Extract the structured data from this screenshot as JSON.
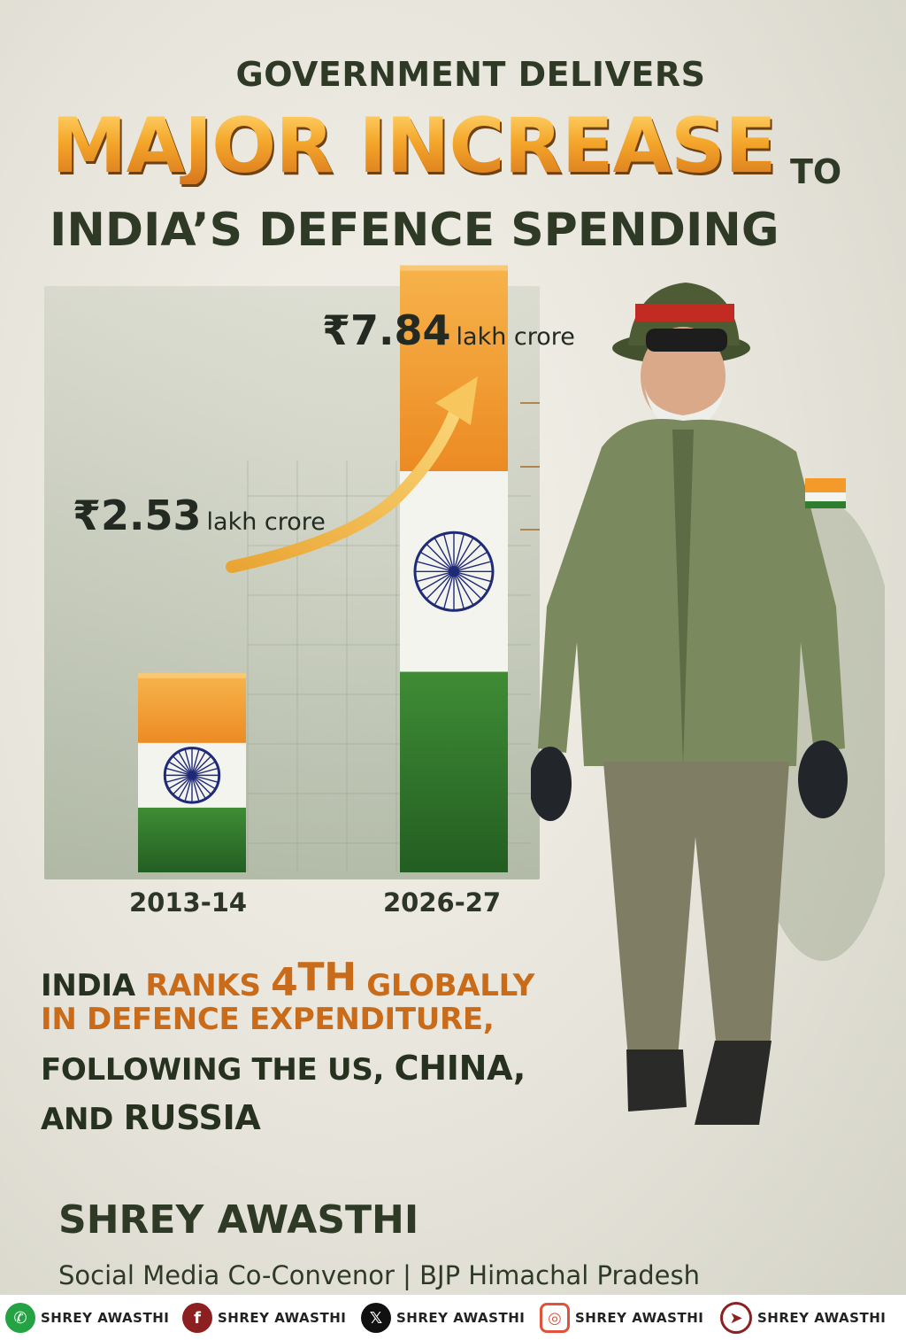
{
  "heading": {
    "line1": "GOVERNMENT DELIVERS",
    "line2": "MAJOR INCREASE",
    "line2_suffix": "TO",
    "line3": "INDIA’S DEFENCE SPENDING"
  },
  "chart_data": {
    "type": "bar",
    "categories": [
      "2013-14",
      "2026-27"
    ],
    "values": [
      2.53,
      7.84
    ],
    "value_labels": [
      "₹2.53",
      "₹7.84"
    ],
    "unit": "lakh crore",
    "title": "",
    "xlabel": "",
    "ylabel": "",
    "ylim": [
      0,
      9
    ],
    "grid": true,
    "bar_style": "indian-flag-tricolor",
    "colors": {
      "saffron": "#f49a2a",
      "white": "#f4f4ef",
      "green": "#2f7d2e",
      "chakra": "#1f2a78",
      "arrow": "#f2b13a"
    }
  },
  "stats": {
    "line1": {
      "a": "INDIA ",
      "b": "RANKS ",
      "num": "4",
      "sup": "TH",
      "c": " GLOBALLY"
    },
    "line2": "IN DEFENCE EXPENDITURE,",
    "line3": {
      "a": "FOLLOWING THE US, ",
      "b": "CHINA,"
    },
    "line4": {
      "a": "AND ",
      "b": "RUSSIA"
    }
  },
  "author": {
    "name": "SHREY AWASTHI",
    "role": "Social Media Co-Convenor | BJP Himachal Pradesh"
  },
  "social": [
    {
      "icon": "whatsapp-icon",
      "label": "SHREY AWASTHI",
      "color": "#25a244"
    },
    {
      "icon": "facebook-icon",
      "label": "SHREY AWASTHI",
      "color": "#8c1f1f"
    },
    {
      "icon": "x-icon",
      "label": "SHREY AWASTHI",
      "color": "#111111"
    },
    {
      "icon": "instagram-icon",
      "label": "SHREY AWASTHI",
      "color": "#e0533a"
    },
    {
      "icon": "telegram-icon",
      "label": "SHREY AWASTHI",
      "color": "#8c1f1f"
    }
  ]
}
